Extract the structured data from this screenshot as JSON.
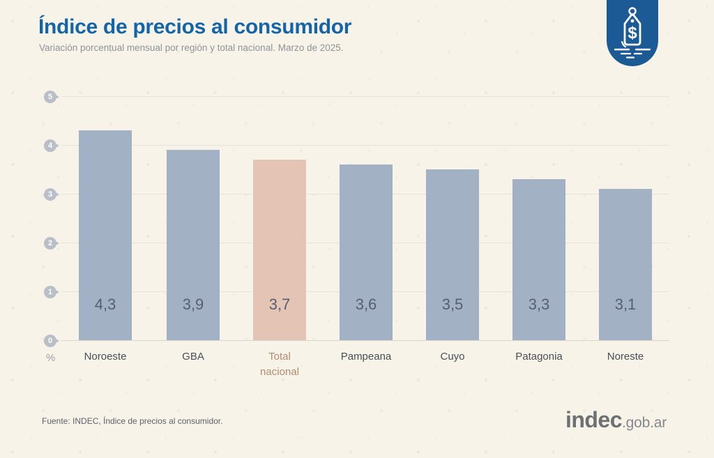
{
  "header": {
    "title": "Índice de precios al consumidor",
    "subtitle": "Variación porcentual mensual por región y total nacional. Marzo de 2025."
  },
  "badge": {
    "icon": "price-tag-icon",
    "symbol": "$"
  },
  "chart_data": {
    "type": "bar",
    "categories": [
      "Noroeste",
      "GBA",
      "Total\nnacional",
      "Pampeana",
      "Cuyo",
      "Patagonia",
      "Noreste"
    ],
    "values": [
      4.3,
      3.9,
      3.7,
      3.6,
      3.5,
      3.3,
      3.1
    ],
    "value_labels": [
      "4,3",
      "3,9",
      "3,7",
      "3,6",
      "3,5",
      "3,3",
      "3,1"
    ],
    "highlight_index": 2,
    "highlight_category": "Total nacional",
    "yticks": [
      5,
      4,
      3,
      2,
      1,
      0
    ],
    "ylabel": "%",
    "ylim": [
      0,
      5
    ],
    "grid": true,
    "legend": "none",
    "colors": {
      "bar": "#a3b1c5",
      "highlight": "#e4c4b4"
    }
  },
  "footer": {
    "source": "Fuente: INDEC, Índice de precios al consumidor.",
    "logo_main": "indec",
    "logo_suffix": ".gob.ar"
  }
}
